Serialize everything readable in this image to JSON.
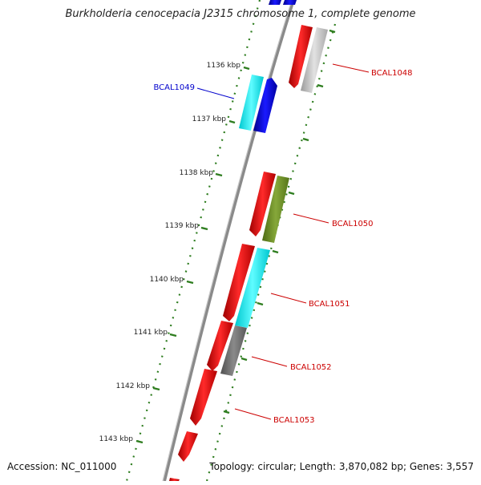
{
  "title": "Burkholderia cenocepacia J2315 chromosome 1, complete genome",
  "footer": {
    "accession": "Accession: NC_011000",
    "summary": "Topology: circular; Length: 3,870,082 bp; Genes: 3,557"
  },
  "scale_labels": [
    "1136 kbp",
    "1137 kbp",
    "1138 kbp",
    "1139 kbp",
    "1140 kbp",
    "1141 kbp",
    "1142 kbp",
    "1143 kbp"
  ],
  "gene_labels": [
    {
      "name": "BCAL1048",
      "color": "#cc0000"
    },
    {
      "name": "BCAL1049",
      "color": "#0000cc"
    },
    {
      "name": "BCAL1050",
      "color": "#cc0000"
    },
    {
      "name": "BCAL1051",
      "color": "#cc0000"
    },
    {
      "name": "BCAL1052",
      "color": "#cc0000"
    },
    {
      "name": "BCAL1053",
      "color": "#cc0000"
    }
  ],
  "colors": {
    "backbone": "#808080",
    "tick": "#2e7d1f",
    "red": "#ff0000",
    "blue": "#0000ff",
    "cyan": "#00e5ee",
    "olive": "#6b8e23",
    "gray": "#707070",
    "lightgray": "#bdbdbd"
  }
}
